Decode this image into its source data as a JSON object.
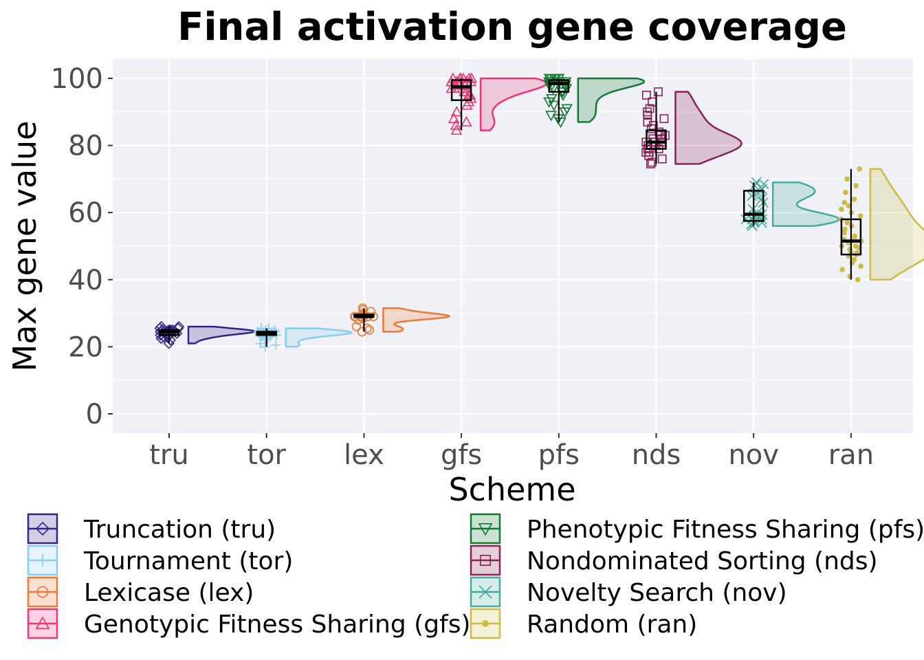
{
  "chart_data": {
    "type": "raincloud",
    "title": "Final activation gene coverage",
    "xlabel": "Scheme",
    "ylabel": "Max gene value",
    "ylim": [
      -5.5,
      105.5
    ],
    "yticks": [
      0,
      20,
      40,
      60,
      80,
      100
    ],
    "grid": true,
    "legend_position": "bottom",
    "categories": [
      "tru",
      "tor",
      "lex",
      "gfs",
      "pfs",
      "nds",
      "nov",
      "ran"
    ],
    "series": [
      {
        "key": "tru",
        "name": "Truncation (tru)",
        "color": "#332288",
        "marker": "diamond",
        "min": 21,
        "q1": 23.5,
        "median": 24.5,
        "q3": 25,
        "max": 26,
        "points": [
          21,
          22,
          22.5,
          23,
          23,
          23.5,
          23.5,
          24,
          24,
          24,
          24,
          24.5,
          24.5,
          24.5,
          24.5,
          24.5,
          25,
          25,
          25,
          25,
          25,
          25.5,
          25.5,
          26,
          26
        ],
        "density_peak": 24.5
      },
      {
        "key": "tor",
        "name": "Tournament (tor)",
        "color": "#88ccee",
        "marker": "plus",
        "min": 20,
        "q1": 23.5,
        "median": 24,
        "q3": 24.5,
        "max": 25.5,
        "points": [
          20,
          20.5,
          21,
          22,
          22.5,
          23,
          23,
          23.5,
          23.5,
          24,
          24,
          24,
          24,
          24,
          24,
          24.5,
          24.5,
          24.5,
          24.5,
          25,
          25,
          25,
          25.5,
          25.5
        ],
        "density_peak": 24
      },
      {
        "key": "lex",
        "name": "Lexicase (lex)",
        "color": "#ee7733",
        "marker": "circle",
        "min": 24.5,
        "q1": 28.8,
        "median": 29,
        "q3": 29.3,
        "max": 31.5,
        "points": [
          24.5,
          25,
          25.5,
          26,
          28,
          28.5,
          29,
          29,
          29,
          29,
          29,
          29,
          29,
          29.5,
          29.5,
          30,
          30.5,
          31,
          31.5
        ],
        "density_peak": 29
      },
      {
        "key": "gfs",
        "name": "Genotypic Fitness Sharing (gfs)",
        "color": "#ee3377",
        "marker": "triangle-up",
        "min": 84.5,
        "q1": 93.5,
        "median": 97.5,
        "q3": 99.5,
        "max": 100,
        "points": [
          84.5,
          86,
          87,
          88,
          90,
          92,
          93,
          94,
          95,
          95,
          96,
          96,
          97,
          97,
          97,
          98,
          98,
          98,
          98,
          99,
          99,
          99,
          99,
          99,
          100,
          100,
          100,
          100,
          100,
          100
        ],
        "density_peak": 99
      },
      {
        "key": "pfs",
        "name": "Phenotypic Fitness Sharing (pfs)",
        "color": "#117733",
        "marker": "triangle-down",
        "min": 87,
        "q1": 96,
        "median": 98.5,
        "q3": 99.5,
        "max": 100,
        "points": [
          87,
          88,
          89,
          90,
          91,
          92,
          93,
          94,
          95,
          96,
          96,
          97,
          97,
          98,
          98,
          98,
          99,
          99,
          99,
          99,
          99,
          100,
          100,
          100,
          100,
          100,
          100,
          100
        ],
        "density_peak": 99.5
      },
      {
        "key": "nds",
        "name": "Nondominated Sorting (nds)",
        "color": "#882255",
        "marker": "square-minus",
        "min": 74.5,
        "q1": 79,
        "median": 81,
        "q3": 84.5,
        "max": 96,
        "points": [
          74.5,
          75,
          76,
          77,
          78,
          78,
          79,
          79,
          80,
          80,
          80,
          81,
          81,
          81,
          81,
          82,
          82,
          83,
          83,
          84,
          85,
          86,
          87,
          88,
          89,
          90,
          91,
          93,
          95,
          96
        ],
        "density_peak": 80
      },
      {
        "key": "nov",
        "name": "Novelty Search (nov)",
        "color": "#44aa99",
        "marker": "x",
        "min": 56,
        "q1": 57.5,
        "median": 59.5,
        "q3": 66.5,
        "max": 69,
        "points": [
          56,
          56.5,
          57,
          57,
          57.5,
          58,
          58,
          58,
          59,
          59,
          59.5,
          60,
          61,
          63,
          64,
          65,
          65.5,
          66,
          66.5,
          67,
          68,
          68.5,
          69
        ],
        "density_peak": 58
      },
      {
        "key": "ran",
        "name": "Random (ran)",
        "color": "#ccbb44",
        "marker": "dot",
        "min": 40,
        "q1": 47.5,
        "median": 51.5,
        "q3": 58,
        "max": 73,
        "points": [
          40,
          41,
          43,
          44,
          45,
          46,
          47,
          47.5,
          48,
          48,
          49,
          49.5,
          50,
          50,
          51,
          51,
          51.5,
          52,
          52,
          53,
          54,
          55,
          56,
          57,
          58,
          59,
          60,
          61,
          62,
          63,
          64,
          66,
          68,
          70,
          73
        ],
        "density_peak": 49
      }
    ]
  }
}
